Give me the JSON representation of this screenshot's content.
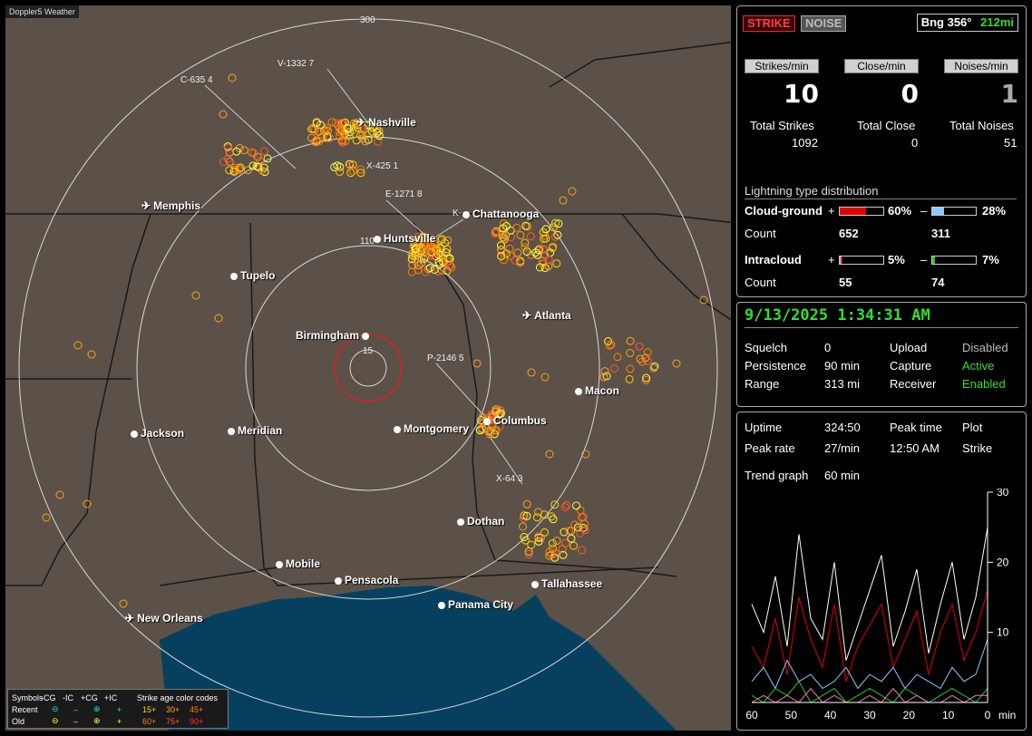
{
  "map": {
    "title": "Doppler5 Weather",
    "ring_labels": {
      "north": "300",
      "r110": "110",
      "r15": "15"
    },
    "stations": [
      "V-1332 7",
      "C-635 4",
      "X-425 1",
      "E-1271 8",
      "K-",
      "P-2146 5",
      "X-64 3"
    ],
    "cities": [
      {
        "name": "Nashville",
        "kind": "plane"
      },
      {
        "name": "Memphis",
        "kind": "plane"
      },
      {
        "name": "Chattanooga",
        "kind": "dot"
      },
      {
        "name": "Huntsville",
        "kind": "dot"
      },
      {
        "name": "Tupelo",
        "kind": "dot"
      },
      {
        "name": "Atlanta",
        "kind": "plane"
      },
      {
        "name": "Birmingham",
        "kind": "dot"
      },
      {
        "name": "Macon",
        "kind": "dot"
      },
      {
        "name": "Columbus",
        "kind": "dot"
      },
      {
        "name": "Jackson",
        "kind": "plane"
      },
      {
        "name": "Meridian",
        "kind": "dot"
      },
      {
        "name": "Montgomery",
        "kind": "dot"
      },
      {
        "name": "Dothan",
        "kind": "dot"
      },
      {
        "name": "Mobile",
        "kind": "dot"
      },
      {
        "name": "Pensacola",
        "kind": "dot"
      },
      {
        "name": "Tallahassee",
        "kind": "dot"
      },
      {
        "name": "Panama City",
        "kind": "dot"
      },
      {
        "name": "New Orleans",
        "kind": "plane"
      }
    ],
    "legend": {
      "header": [
        "Symbols",
        "-CG",
        "-IC",
        "+CG",
        "+IC",
        "Strike age color codes"
      ],
      "recent_label": "Recent",
      "old_label": "Old",
      "recent_ages": [
        "15+",
        "30+",
        "45+"
      ],
      "old_ages": [
        "60+",
        "75+",
        "90+"
      ]
    }
  },
  "stats": {
    "strike_tab": "STRIKE",
    "noise_tab": "NOISE",
    "bearing_label": "Bng 356°",
    "distance": "212mi",
    "headers": [
      "Strikes/min",
      "Close/min",
      "Noises/min"
    ],
    "rates": [
      "10",
      "0",
      "1"
    ],
    "totals_labels": [
      "Total Strikes",
      "Total Close",
      "Total Noises"
    ],
    "totals": [
      "1092",
      "0",
      "51"
    ],
    "distribution_title": "Lightning type distribution",
    "cg_label": "Cloud-ground",
    "ic_label": "Intracloud",
    "count_label": "Count",
    "cg_pos_pct": "60%",
    "cg_neg_pct": "28%",
    "cg_pos_count": "652",
    "cg_neg_count": "311",
    "ic_pos_pct": "5%",
    "ic_neg_pct": "7%",
    "ic_pos_count": "55",
    "ic_neg_count": "74",
    "plus": "+",
    "minus": "–",
    "fractions": {
      "cg_pos": 0.6,
      "cg_neg": 0.28,
      "ic_pos": 0.05,
      "ic_neg": 0.07
    },
    "colors": {
      "cg_pos": "#e00000",
      "cg_neg": "#8fc8ff",
      "ic_pos": "#ff77aa",
      "ic_neg": "#22cc22"
    }
  },
  "status": {
    "datetime": "9/13/2025 1:34:31 AM",
    "rows": [
      {
        "k1": "Squelch",
        "v1": "0",
        "k2": "Upload",
        "v2": "Disabled"
      },
      {
        "k1": "Persistence",
        "v1": "90 min",
        "k2": "Capture",
        "v2": "Active"
      },
      {
        "k1": "Range",
        "v1": "313 mi",
        "k2": "Receiver",
        "v2": "Enabled"
      }
    ]
  },
  "trend": {
    "uptime_label": "Uptime",
    "uptime": "324:50",
    "peak_time_label": "Peak time",
    "peak_time": "12:50 AM",
    "plot_label": "Plot",
    "plot_value": "Strike",
    "peak_rate_label": "Peak rate",
    "peak_rate": "27/min",
    "trend_label": "Trend graph",
    "trend_value": "60 min",
    "x_ticks": [
      "60",
      "50",
      "40",
      "30",
      "20",
      "10",
      "0"
    ],
    "x_unit": "min",
    "y_ticks": [
      "30",
      "20",
      "10"
    ]
  },
  "chart_data": {
    "type": "line",
    "x": [
      60,
      57,
      54,
      51,
      48,
      45,
      42,
      39,
      36,
      33,
      30,
      27,
      24,
      21,
      18,
      15,
      12,
      9,
      6,
      3,
      0
    ],
    "xlabel": "min",
    "ylim": [
      0,
      30
    ],
    "series": [
      {
        "color": "#ffffff",
        "values": [
          14,
          10,
          18,
          8,
          24,
          12,
          9,
          20,
          6,
          11,
          16,
          21,
          8,
          13,
          19,
          7,
          14,
          20,
          9,
          15,
          25
        ]
      },
      {
        "color": "#e00000",
        "values": [
          8,
          5,
          12,
          4,
          15,
          9,
          5,
          14,
          3,
          8,
          11,
          14,
          5,
          9,
          13,
          4,
          10,
          14,
          6,
          10,
          16
        ]
      },
      {
        "color": "#8fc8ff",
        "values": [
          3,
          5,
          2,
          6,
          3,
          4,
          2,
          3,
          5,
          2,
          4,
          3,
          5,
          2,
          4,
          3,
          2,
          5,
          3,
          4,
          9
        ]
      },
      {
        "color": "#22cc22",
        "values": [
          1,
          0,
          2,
          1,
          3,
          0,
          1,
          2,
          0,
          1,
          2,
          1,
          0,
          2,
          1,
          0,
          1,
          2,
          1,
          0,
          2
        ]
      },
      {
        "color": "#ff77aa",
        "values": [
          0,
          1,
          0,
          1,
          0,
          2,
          0,
          1,
          0,
          0,
          1,
          0,
          2,
          0,
          1,
          0,
          0,
          1,
          0,
          1,
          1
        ]
      }
    ]
  }
}
